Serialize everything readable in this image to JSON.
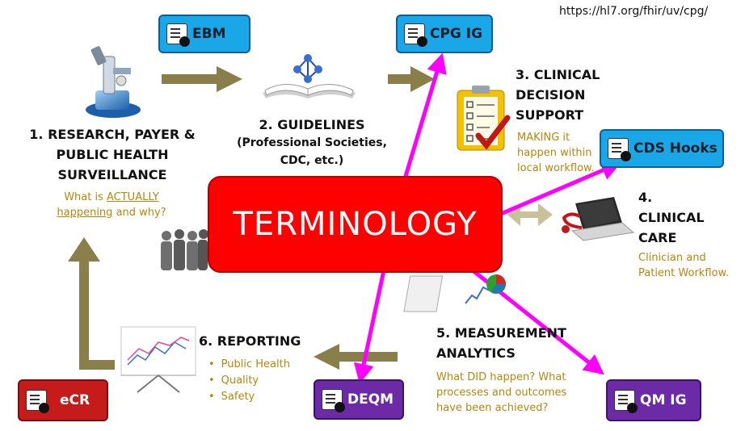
{
  "url": "https://hl7.org/fhir/uv/cpg/",
  "center": {
    "label": "TERMINOLOGY"
  },
  "stages": {
    "research": {
      "title": [
        "1. RESEARCH, PAYER &",
        "PUBLIC HEALTH",
        "SURVEILLANCE"
      ],
      "subtitle_pre": "What is ",
      "subtitle_emph": "ACTUALLY",
      "subtitle_line2a": "happening",
      "subtitle_line2b": " and why?"
    },
    "guidelines": {
      "title": "2. GUIDELINES",
      "details": [
        "(Professional Societies,",
        "CDC, etc.)"
      ]
    },
    "cds": {
      "title": [
        "3. CLINICAL",
        "DECISION",
        "SUPPORT"
      ],
      "subtitle": [
        "MAKING it",
        "happen within",
        "local workflow."
      ]
    },
    "care": {
      "title": [
        "4.",
        "CLINICAL",
        "CARE"
      ],
      "subtitle": [
        "Clinician and",
        "Patient Workflow."
      ]
    },
    "measurement": {
      "title": [
        "5. MEASUREMENT",
        "ANALYTICS"
      ],
      "subtitle": [
        "What DID happen? What",
        "processes and outcomes",
        "have been achieved?"
      ]
    },
    "reporting": {
      "title": "6. REPORTING",
      "bullets": [
        "Public Health",
        "Quality",
        "Safety"
      ]
    }
  },
  "igs": {
    "ebm": {
      "label": "EBM",
      "color": "#1aa7e8"
    },
    "cpg": {
      "label": "CPG IG",
      "color": "#1aa7e8"
    },
    "cds_hooks": {
      "label": "CDS Hooks",
      "color": "#1aa7e8"
    },
    "deqm": {
      "label": "DEQM",
      "color": "#6c2aa6"
    },
    "qm": {
      "label": "QM IG",
      "color": "#6c2aa6"
    },
    "ecr": {
      "label": "eCR",
      "color": "#c51b1b"
    }
  },
  "icons": [
    "microscope-icon",
    "book-molecule-icon",
    "clipboard-checklist-icon",
    "laptop-stethoscope-icon",
    "analytics-chart-icon",
    "presentation-chart-icon",
    "people-silhouettes-icon",
    "document-icon"
  ],
  "colors": {
    "arrow": "#8a7f4a",
    "connector": "#ff00ff",
    "subtitle": "#b8860b",
    "terminology": "#ff0000"
  }
}
